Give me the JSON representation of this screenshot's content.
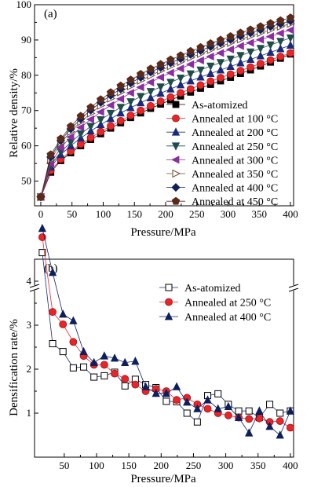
{
  "chart_data": [
    {
      "type": "line",
      "panel_label": "(a)",
      "xlabel": "Pressure/MPa",
      "ylabel": "Relative density/%",
      "xlim": [
        -10,
        405
      ],
      "ylim": [
        43,
        100
      ],
      "xticks": [
        0,
        50,
        100,
        150,
        200,
        250,
        300,
        350,
        400
      ],
      "yticks": [
        50,
        60,
        70,
        80,
        90,
        100
      ],
      "legend_position": "bottom-right",
      "x": [
        0,
        16,
        32,
        48,
        64,
        80,
        96,
        112,
        128,
        144,
        160,
        176,
        192,
        208,
        224,
        240,
        256,
        272,
        288,
        304,
        320,
        336,
        352,
        368,
        384,
        400
      ],
      "series": [
        {
          "name": "As-atomized",
          "marker": "square",
          "color": "#000000",
          "values": [
            45.5,
            52.5,
            55.8,
            58.0,
            60.0,
            61.8,
            63.4,
            65.0,
            66.5,
            68.0,
            69.3,
            70.6,
            71.8,
            73.0,
            74.1,
            75.2,
            76.3,
            77.4,
            78.4,
            79.4,
            80.5,
            81.5,
            82.6,
            83.7,
            84.8,
            86.0
          ]
        },
        {
          "name": "Annealed at 100 °C",
          "marker": "circle",
          "color": "#e8262a",
          "values": [
            45.5,
            53.0,
            56.2,
            58.5,
            60.5,
            62.3,
            64.0,
            65.6,
            67.1,
            68.6,
            70.0,
            71.3,
            72.6,
            73.8,
            75.0,
            76.1,
            77.2,
            78.3,
            79.3,
            80.3,
            81.3,
            82.3,
            83.3,
            84.3,
            85.3,
            86.3
          ]
        },
        {
          "name": "Annealed at 200 °C",
          "marker": "triangle-up",
          "color": "#1a2a7a",
          "values": [
            45.5,
            54.0,
            57.5,
            60.0,
            62.2,
            64.2,
            66.0,
            67.7,
            69.3,
            70.8,
            72.2,
            73.6,
            74.9,
            76.1,
            77.3,
            78.4,
            79.5,
            80.5,
            81.5,
            82.5,
            83.5,
            84.5,
            85.5,
            86.5,
            87.5,
            88.5
          ]
        },
        {
          "name": "Annealed at 250 °C",
          "marker": "triangle-down",
          "color": "#1f4d4a",
          "values": [
            45.5,
            54.5,
            58.3,
            61.0,
            63.4,
            65.5,
            67.4,
            69.2,
            70.9,
            72.5,
            74.0,
            75.4,
            76.7,
            78.0,
            79.2,
            80.4,
            81.5,
            82.6,
            83.6,
            84.6,
            85.6,
            86.6,
            87.6,
            88.6,
            89.6,
            90.6
          ]
        },
        {
          "name": "Annealed at 300 °C",
          "marker": "triangle-left",
          "color": "#8a2fa0",
          "values": [
            45.5,
            55.0,
            59.5,
            62.5,
            65.2,
            67.5,
            69.6,
            71.5,
            73.3,
            75.0,
            76.6,
            78.0,
            79.4,
            80.7,
            81.9,
            83.1,
            84.2,
            85.3,
            86.3,
            87.3,
            88.3,
            89.2,
            90.1,
            91.0,
            91.9,
            92.8
          ]
        },
        {
          "name": "Annealed at 350 °C",
          "marker": "triangle-right",
          "color": "#6b4a30",
          "values": [
            45.5,
            56.0,
            60.8,
            64.0,
            66.8,
            69.2,
            71.4,
            73.4,
            75.2,
            76.9,
            78.5,
            79.9,
            81.3,
            82.6,
            83.8,
            85.0,
            86.1,
            87.2,
            88.2,
            89.2,
            90.2,
            91.1,
            92.0,
            92.9,
            93.8,
            94.6
          ]
        },
        {
          "name": "Annealed at 400 °C",
          "marker": "diamond",
          "color": "#0d1f5c",
          "values": [
            45.5,
            56.8,
            61.5,
            64.8,
            67.6,
            70.1,
            72.3,
            74.3,
            76.1,
            77.8,
            79.4,
            80.9,
            82.2,
            83.5,
            84.7,
            85.9,
            87.0,
            88.1,
            89.1,
            90.1,
            91.1,
            92.0,
            92.9,
            93.8,
            94.6,
            95.4
          ]
        },
        {
          "name": "Annealed at 450 °C",
          "marker": "pentagon",
          "color": "#5a2a1a",
          "values": [
            45.5,
            57.5,
            62.0,
            65.5,
            68.4,
            70.9,
            73.1,
            75.1,
            77.0,
            78.7,
            80.3,
            81.8,
            83.1,
            84.4,
            85.6,
            86.8,
            87.9,
            89.0,
            90.0,
            91.0,
            92.0,
            92.9,
            93.8,
            94.7,
            95.5,
            96.3
          ]
        }
      ]
    },
    {
      "type": "line",
      "panel_label": "(b)",
      "xlabel": "Pressure/MPa",
      "ylabel": "Densification rate/%",
      "xlim": [
        4,
        405
      ],
      "ylim": [
        0,
        4.5
      ],
      "axis_break": true,
      "xticks": [
        50,
        100,
        150,
        200,
        250,
        300,
        350,
        400
      ],
      "yticks": [
        1,
        2,
        3,
        4
      ],
      "legend_position": "top-right",
      "series": [
        {
          "name": "As-atomized",
          "marker": "square-open",
          "color": "#1a2a7a",
          "x": [
            16,
            32,
            48,
            64,
            80,
            96,
            112,
            128,
            144,
            160,
            176,
            192,
            208,
            224,
            240,
            256,
            272,
            288,
            304,
            320,
            336,
            352,
            368,
            384,
            400
          ],
          "values": [
            4.65,
            2.58,
            2.4,
            2.03,
            2.05,
            1.82,
            1.85,
            1.93,
            1.62,
            1.77,
            1.65,
            1.58,
            1.27,
            1.26,
            1.0,
            0.8,
            1.4,
            1.44,
            1.2,
            1.05,
            1.05,
            0.9,
            1.2,
            1.0,
            1.05
          ]
        },
        {
          "name": "Annealed at 250 °C",
          "marker": "circle",
          "color": "#e8262a",
          "x": [
            16,
            32,
            48,
            64,
            80,
            96,
            112,
            128,
            144,
            160,
            176,
            192,
            208,
            224,
            240,
            256,
            272,
            288,
            304,
            320,
            336,
            352,
            368,
            384,
            400
          ],
          "values": [
            5.0,
            3.3,
            3.02,
            2.62,
            2.3,
            2.1,
            2.1,
            1.9,
            1.78,
            1.65,
            1.5,
            1.55,
            1.5,
            1.3,
            1.35,
            1.2,
            1.1,
            1.0,
            0.95,
            0.9,
            0.87,
            0.88,
            0.8,
            0.82,
            0.67
          ]
        },
        {
          "name": "Annealed at 400 °C",
          "marker": "triangle-up",
          "color": "#0d1f5c",
          "x": [
            16,
            32,
            48,
            64,
            80,
            96,
            112,
            128,
            144,
            160,
            176,
            192,
            208,
            224,
            240,
            256,
            272,
            288,
            304,
            320,
            336,
            352,
            368,
            384,
            400
          ],
          "values": [
            5.2,
            4.2,
            3.25,
            3.1,
            2.4,
            2.15,
            2.3,
            2.25,
            2.15,
            2.18,
            1.6,
            1.45,
            1.45,
            1.6,
            1.25,
            1.1,
            1.3,
            1.1,
            1.15,
            0.9,
            0.55,
            1.05,
            0.7,
            0.5,
            1.05
          ]
        }
      ]
    }
  ]
}
